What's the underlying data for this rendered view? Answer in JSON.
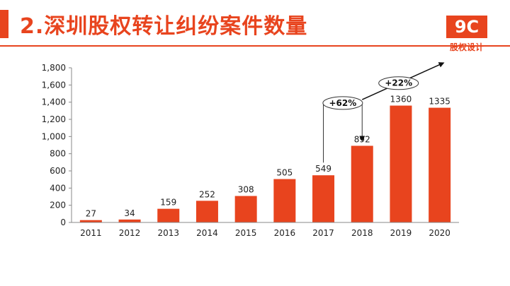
{
  "header": {
    "title": "2.深圳股权转让纠纷案件数量",
    "logo_main": "9C",
    "logo_sub": "股权设计"
  },
  "colors": {
    "accent": "#e8441e",
    "axis": "#888888",
    "text": "#222222"
  },
  "chart_data": {
    "type": "bar",
    "categories": [
      "2011",
      "2012",
      "2013",
      "2014",
      "2015",
      "2016",
      "2017",
      "2018",
      "2019",
      "2020"
    ],
    "values": [
      27,
      34,
      159,
      252,
      308,
      505,
      549,
      892,
      1360,
      1335
    ],
    "y_ticks": [
      "0",
      "200",
      "400",
      "600",
      "800",
      "1,000",
      "1,200",
      "1,400",
      "1,600",
      "1,800"
    ],
    "ylim": [
      0,
      1800
    ],
    "grid": false,
    "annotations": [
      {
        "label": "+62%",
        "from": "2017",
        "to": "2018"
      },
      {
        "label": "+22%",
        "from": "2018",
        "to": "2020"
      }
    ]
  }
}
